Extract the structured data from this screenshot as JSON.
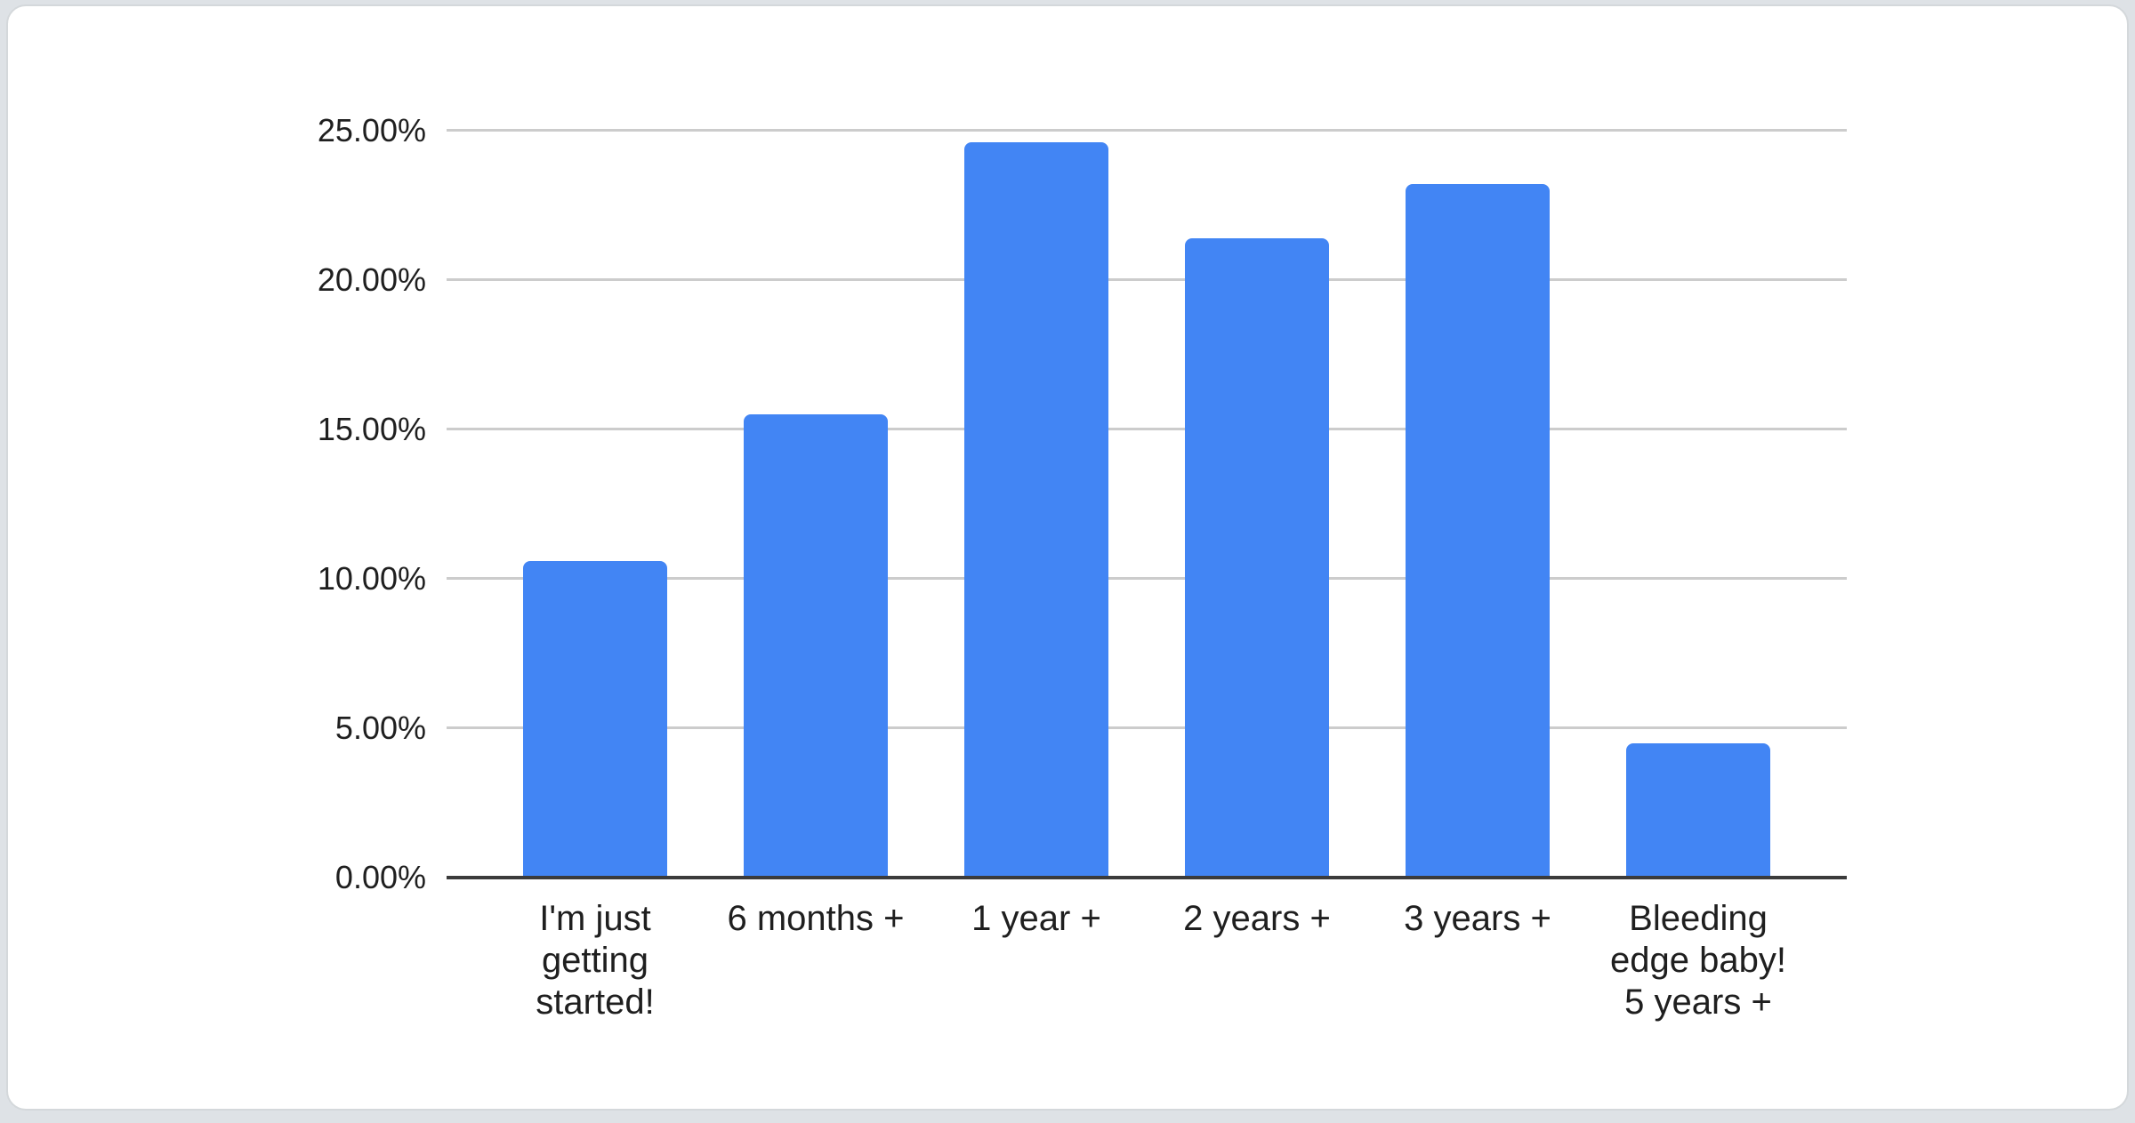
{
  "window": {
    "background": "#dee2e6",
    "card_background": "#ffffff",
    "card_border": "#d4d8db"
  },
  "chart_data": {
    "type": "bar",
    "title": "",
    "xlabel": "",
    "ylabel": "",
    "categories": [
      "I'm just getting started!",
      "6 months +",
      "1 year +",
      "2 years +",
      "3 years +",
      "Bleeding edge baby! 5 years +"
    ],
    "category_label_lines": [
      [
        "I'm just",
        "getting",
        "started!"
      ],
      [
        "6 months +"
      ],
      [
        "1 year +"
      ],
      [
        "2 years +"
      ],
      [
        "3 years +"
      ],
      [
        "Bleeding",
        "edge baby!",
        "5 years +"
      ]
    ],
    "values": [
      10.6,
      15.5,
      24.6,
      21.4,
      23.2,
      4.5
    ],
    "value_format": "percent",
    "ylim": [
      0,
      25
    ],
    "yticks": [
      {
        "value": 0,
        "label": "0.00%"
      },
      {
        "value": 5,
        "label": "5.00%"
      },
      {
        "value": 10,
        "label": "10.00%"
      },
      {
        "value": 15,
        "label": "15.00%"
      },
      {
        "value": 20,
        "label": "20.00%"
      },
      {
        "value": 25,
        "label": "25.00%"
      }
    ],
    "grid": true,
    "legend_position": "none",
    "bar_color": "#4285f4",
    "gridline_color": "#cccccc",
    "axis_line_color": "#3b3b3b",
    "label_color": "#1f1f1f"
  }
}
